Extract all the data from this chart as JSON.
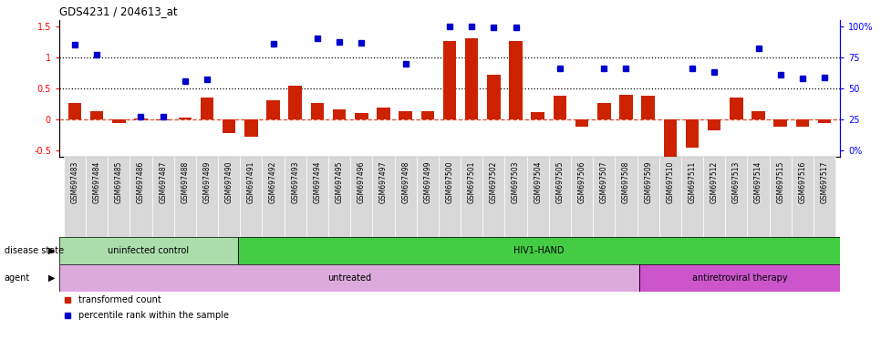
{
  "title": "GDS4231 / 204613_at",
  "samples": [
    "GSM697483",
    "GSM697484",
    "GSM697485",
    "GSM697486",
    "GSM697487",
    "GSM697488",
    "GSM697489",
    "GSM697490",
    "GSM697491",
    "GSM697492",
    "GSM697493",
    "GSM697494",
    "GSM697495",
    "GSM697496",
    "GSM697497",
    "GSM697498",
    "GSM697499",
    "GSM697500",
    "GSM697501",
    "GSM697502",
    "GSM697503",
    "GSM697504",
    "GSM697505",
    "GSM697506",
    "GSM697507",
    "GSM697508",
    "GSM697509",
    "GSM697510",
    "GSM697511",
    "GSM697512",
    "GSM697513",
    "GSM697514",
    "GSM697515",
    "GSM697516",
    "GSM697517"
  ],
  "transformed_count": [
    0.27,
    0.13,
    -0.05,
    0.02,
    -0.01,
    0.03,
    0.35,
    -0.22,
    -0.27,
    0.31,
    0.55,
    0.27,
    0.17,
    0.1,
    0.19,
    0.13,
    0.13,
    1.27,
    1.3,
    0.72,
    1.27,
    0.12,
    0.38,
    -0.12,
    0.27,
    0.4,
    0.39,
    -0.6,
    -0.45,
    -0.18,
    0.35,
    0.14,
    -0.12,
    -0.12,
    -0.05
  ],
  "percentile_rank": [
    1.2,
    1.05,
    null,
    0.04,
    0.04,
    0.62,
    0.65,
    null,
    null,
    1.22,
    null,
    1.3,
    1.25,
    1.23,
    null,
    0.9,
    null,
    1.5,
    1.5,
    1.48,
    1.48,
    null,
    0.83,
    null,
    0.83,
    0.82,
    null,
    null,
    0.82,
    0.77,
    null,
    1.15,
    0.72,
    0.66,
    0.67
  ],
  "ylim": [
    -0.6,
    1.6
  ],
  "bar_color": "#cc2200",
  "dot_color": "#0000cc",
  "tick_bg_color": "#d8d8d8",
  "disease_state_groups": [
    {
      "label": "uninfected control",
      "start": 0,
      "end": 8,
      "color": "#aaddaa"
    },
    {
      "label": "HIV1-HAND",
      "start": 8,
      "end": 35,
      "color": "#44cc44"
    }
  ],
  "agent_groups": [
    {
      "label": "untreated",
      "start": 0,
      "end": 26,
      "color": "#ddaadd"
    },
    {
      "label": "antiretroviral therapy",
      "start": 26,
      "end": 35,
      "color": "#cc55cc"
    }
  ],
  "disease_state_label": "disease state",
  "agent_label": "agent",
  "legend_items": [
    {
      "label": "transformed count",
      "color": "#cc2200"
    },
    {
      "label": "percentile rank within the sample",
      "color": "#0000cc"
    }
  ]
}
